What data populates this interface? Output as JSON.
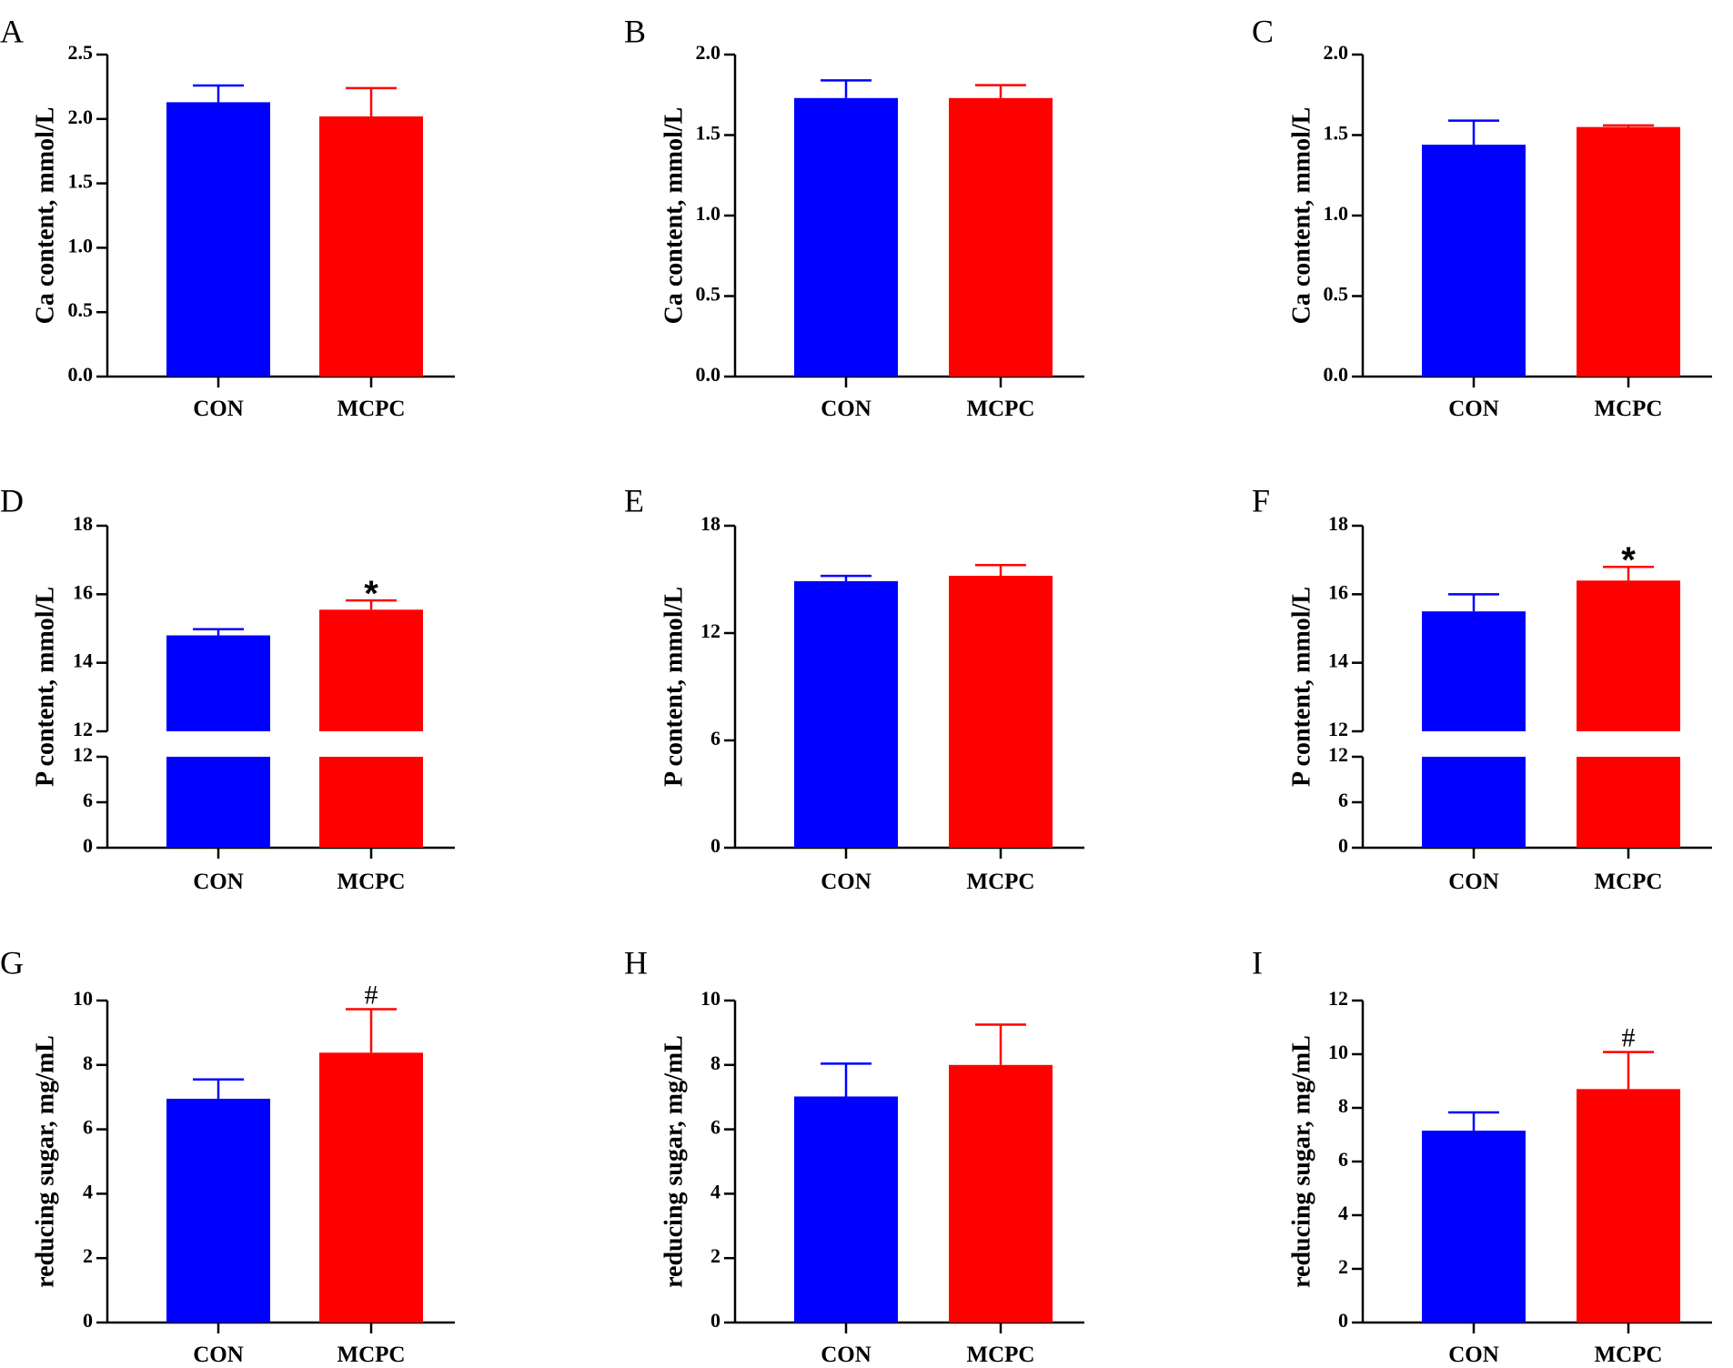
{
  "colors": {
    "CON": "#0000ff",
    "MCPC": "#ff0000",
    "axis": "#000000"
  },
  "chart_data": [
    {
      "panel": "A",
      "type": "bar",
      "ylabel": "Ca content, mmol/L",
      "categories": [
        "CON",
        "MCPC"
      ],
      "values": [
        2.13,
        2.02
      ],
      "errors": [
        0.13,
        0.22
      ],
      "ylim": [
        0,
        2.5
      ],
      "yticks": [
        0.0,
        0.5,
        1.0,
        1.5,
        2.0,
        2.5
      ],
      "tick_format": 1,
      "significance": [
        null,
        null
      ]
    },
    {
      "panel": "B",
      "type": "bar",
      "ylabel": "Ca content, mmol/L",
      "categories": [
        "CON",
        "MCPC"
      ],
      "values": [
        1.73,
        1.73
      ],
      "errors": [
        0.11,
        0.08
      ],
      "ylim": [
        0,
        2.0
      ],
      "yticks": [
        0.0,
        0.5,
        1.0,
        1.5,
        2.0
      ],
      "tick_format": 1,
      "significance": [
        null,
        null
      ]
    },
    {
      "panel": "C",
      "type": "bar",
      "ylabel": "Ca content, mmol/L",
      "categories": [
        "CON",
        "MCPC"
      ],
      "values": [
        1.44,
        1.55
      ],
      "errors": [
        0.15,
        0.01
      ],
      "ylim": [
        0,
        2.0
      ],
      "yticks": [
        0.0,
        0.5,
        1.0,
        1.5,
        2.0
      ],
      "tick_format": 1,
      "significance": [
        null,
        null
      ]
    },
    {
      "panel": "D",
      "type": "bar",
      "ylabel": "P content, mmol/L",
      "categories": [
        "CON",
        "MCPC"
      ],
      "values": [
        14.8,
        15.55
      ],
      "errors": [
        0.18,
        0.27
      ],
      "ylim": [
        0,
        18
      ],
      "axis_break": [
        12,
        12
      ],
      "yticks_lower": [
        0,
        6,
        12
      ],
      "yticks_upper": [
        12,
        14,
        16,
        18
      ],
      "tick_format": 0,
      "significance": [
        null,
        "*"
      ]
    },
    {
      "panel": "E",
      "type": "bar",
      "ylabel": "P content, mmol/L",
      "categories": [
        "CON",
        "MCPC"
      ],
      "values": [
        14.9,
        15.2
      ],
      "errors": [
        0.3,
        0.6
      ],
      "ylim": [
        0,
        18
      ],
      "yticks": [
        0,
        6,
        12,
        18
      ],
      "tick_format": 0,
      "significance": [
        null,
        null
      ]
    },
    {
      "panel": "F",
      "type": "bar",
      "ylabel": "P content, mmol/L",
      "categories": [
        "CON",
        "MCPC"
      ],
      "values": [
        15.5,
        16.4
      ],
      "errors": [
        0.5,
        0.4
      ],
      "ylim": [
        0,
        18
      ],
      "axis_break": [
        12,
        12
      ],
      "yticks_lower": [
        0,
        6,
        12
      ],
      "yticks_upper": [
        12,
        14,
        16,
        18
      ],
      "tick_format": 0,
      "significance": [
        null,
        "*"
      ]
    },
    {
      "panel": "G",
      "type": "bar",
      "ylabel": "reducing sugar, mg/mL",
      "categories": [
        "CON",
        "MCPC"
      ],
      "values": [
        6.95,
        8.38
      ],
      "errors": [
        0.6,
        1.35
      ],
      "ylim": [
        0,
        10
      ],
      "yticks": [
        0,
        2,
        4,
        6,
        8,
        10
      ],
      "tick_format": 0,
      "significance": [
        null,
        "#"
      ]
    },
    {
      "panel": "H",
      "type": "bar",
      "ylabel": "reducing sugar, mg/mL",
      "categories": [
        "CON",
        "MCPC"
      ],
      "values": [
        7.02,
        8.0
      ],
      "errors": [
        1.02,
        1.25
      ],
      "ylim": [
        0,
        10
      ],
      "yticks": [
        0,
        2,
        4,
        6,
        8,
        10
      ],
      "tick_format": 0,
      "significance": [
        null,
        null
      ]
    },
    {
      "panel": "I",
      "type": "bar",
      "ylabel": "reducing sugar, mg/mL",
      "categories": [
        "CON",
        "MCPC"
      ],
      "values": [
        7.15,
        8.7
      ],
      "errors": [
        0.68,
        1.38
      ],
      "ylim": [
        0,
        12
      ],
      "yticks": [
        0,
        2,
        4,
        6,
        8,
        10,
        12
      ],
      "tick_format": 0,
      "significance": [
        null,
        "#"
      ]
    }
  ]
}
